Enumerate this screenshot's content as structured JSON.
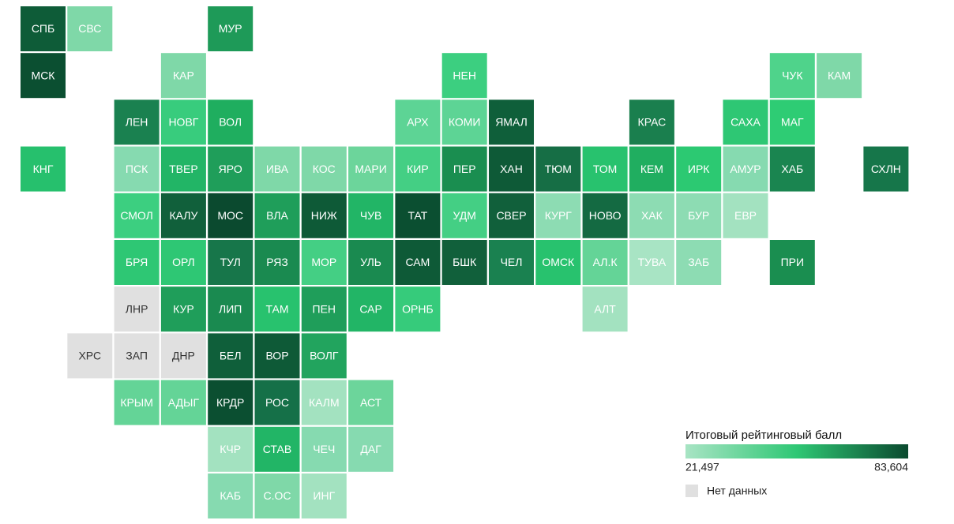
{
  "grid": [
    [
      {
        "label": "СПБ",
        "color": "#0e5c38"
      },
      {
        "label": "СВС",
        "color": "#7fd8a8"
      },
      null,
      null,
      {
        "label": "МУР",
        "color": "#1e9a58"
      }
    ],
    [
      {
        "label": "МСК",
        "color": "#0b4f31"
      },
      null,
      null,
      {
        "label": "КАР",
        "color": "#7fd8a8"
      },
      null,
      null,
      null,
      null,
      null,
      {
        "label": "НЕН",
        "color": "#3ccf80"
      },
      null,
      null,
      null,
      null,
      null,
      null,
      {
        "label": "ЧУК",
        "color": "#4fd38b"
      },
      {
        "label": "КАМ",
        "color": "#7fd8a8"
      }
    ],
    [
      null,
      null,
      {
        "label": "ЛЕН",
        "color": "#1a8150"
      },
      {
        "label": "НОВГ",
        "color": "#38cc7d"
      },
      {
        "label": "ВОЛ",
        "color": "#1fae5f"
      },
      null,
      null,
      null,
      {
        "label": "АРХ",
        "color": "#5dd495"
      },
      {
        "label": "КОМИ",
        "color": "#5dd495"
      },
      {
        "label": "ЯМАЛ",
        "color": "#0f5f3a"
      },
      null,
      null,
      {
        "label": "КРАС",
        "color": "#1a7f4e"
      },
      null,
      {
        "label": "САХА",
        "color": "#2ec774"
      },
      {
        "label": "МАГ",
        "color": "#2ecc74"
      }
    ],
    [
      {
        "label": "КНГ",
        "color": "#26c06d"
      },
      null,
      {
        "label": "ПСК",
        "color": "#86dab0"
      },
      {
        "label": "ТВЕР",
        "color": "#22b566"
      },
      {
        "label": "ЯРО",
        "color": "#1f9e5a"
      },
      {
        "label": "ИВА",
        "color": "#7fd8a8"
      },
      {
        "label": "КОС",
        "color": "#7fd8a8"
      },
      {
        "label": "МАРИ",
        "color": "#6cd59b"
      },
      {
        "label": "КИР",
        "color": "#44cf84"
      },
      {
        "label": "ПЕР",
        "color": "#1a8e50"
      },
      {
        "label": "ХАН",
        "color": "#0e5a37"
      },
      {
        "label": "ТЮМ",
        "color": "#166e45"
      },
      {
        "label": "ТОМ",
        "color": "#28c26e"
      },
      {
        "label": "КЕМ",
        "color": "#20ae60"
      },
      {
        "label": "ИРК",
        "color": "#2cc972"
      },
      {
        "label": "АМУР",
        "color": "#86dab0"
      },
      {
        "label": "ХАБ",
        "color": "#1a8550"
      },
      null,
      {
        "label": "СХЛН",
        "color": "#16764a"
      }
    ],
    [
      null,
      null,
      {
        "label": "СМОЛ",
        "color": "#3ccf80"
      },
      {
        "label": "КАЛУ",
        "color": "#11603b"
      },
      {
        "label": "МОС",
        "color": "#0b4a2f"
      },
      {
        "label": "ВЛА",
        "color": "#1f9e5a"
      },
      {
        "label": "НИЖ",
        "color": "#0e5a37"
      },
      {
        "label": "ЧУВ",
        "color": "#22b566"
      },
      {
        "label": "ТАТ",
        "color": "#0b4f31"
      },
      {
        "label": "УДМ",
        "color": "#44cf84"
      },
      {
        "label": "СВЕР",
        "color": "#11603b"
      },
      {
        "label": "КУРГ",
        "color": "#8ddcb3"
      },
      {
        "label": "НОВО",
        "color": "#146a42"
      },
      {
        "label": "ХАК",
        "color": "#8ddcb3"
      },
      {
        "label": "БУР",
        "color": "#8ddcb3"
      },
      {
        "label": "ЕВР",
        "color": "#a3e2c0"
      }
    ],
    [
      null,
      null,
      {
        "label": "БРЯ",
        "color": "#2ec774"
      },
      {
        "label": "ОРЛ",
        "color": "#2ec774"
      },
      {
        "label": "ТУЛ",
        "color": "#17764a"
      },
      {
        "label": "РЯЗ",
        "color": "#1a8a50"
      },
      {
        "label": "МОР",
        "color": "#44cf84"
      },
      {
        "label": "УЛЬ",
        "color": "#1a8a50"
      },
      {
        "label": "САМ",
        "color": "#0e5a37"
      },
      {
        "label": "БШК",
        "color": "#11603b"
      },
      {
        "label": "ЧЕЛ",
        "color": "#1a8150"
      },
      {
        "label": "ОМСК",
        "color": "#28c26e"
      },
      {
        "label": "АЛ.К",
        "color": "#64d497"
      },
      {
        "label": "ТУВА",
        "color": "#a8e4c4"
      },
      {
        "label": "ЗАБ",
        "color": "#8ddcb3"
      },
      null,
      {
        "label": "ПРИ",
        "color": "#1a8e50"
      }
    ],
    [
      null,
      null,
      {
        "label": "ЛНР",
        "color": "#e0e0e0"
      },
      {
        "label": "КУР",
        "color": "#1f9e5a"
      },
      {
        "label": "ЛИП",
        "color": "#1a8a50"
      },
      {
        "label": "ТАМ",
        "color": "#28c26e"
      },
      {
        "label": "ПЕН",
        "color": "#1f9e5a"
      },
      {
        "label": "САР",
        "color": "#22b566"
      },
      {
        "label": "ОРНБ",
        "color": "#36cb7b"
      },
      null,
      null,
      null,
      {
        "label": "АЛТ",
        "color": "#a3e2c0"
      }
    ],
    [
      null,
      {
        "label": "ХРС",
        "color": "#e0e0e0"
      },
      {
        "label": "ЗАП",
        "color": "#e0e0e0"
      },
      {
        "label": "ДНР",
        "color": "#e0e0e0"
      },
      {
        "label": "БЕЛ",
        "color": "#0f5f3a"
      },
      {
        "label": "ВОР",
        "color": "#0e5a37"
      },
      {
        "label": "ВОЛГ",
        "color": "#22a45e"
      }
    ],
    [
      null,
      null,
      {
        "label": "КРЫМ",
        "color": "#64d497"
      },
      {
        "label": "АДЫГ",
        "color": "#64d497"
      },
      {
        "label": "КРДР",
        "color": "#0b4f31"
      },
      {
        "label": "РОС",
        "color": "#157048"
      },
      {
        "label": "КАЛМ",
        "color": "#a3e2c0"
      },
      {
        "label": "АСТ",
        "color": "#6cd59b"
      }
    ],
    [
      null,
      null,
      null,
      null,
      {
        "label": "КЧР",
        "color": "#a3e2c0"
      },
      {
        "label": "СТАВ",
        "color": "#22b566"
      },
      {
        "label": "ЧЕЧ",
        "color": "#86dab0"
      },
      {
        "label": "ДАГ",
        "color": "#86dab0"
      }
    ],
    [
      null,
      null,
      null,
      null,
      {
        "label": "КАБ",
        "color": "#86dab0"
      },
      {
        "label": "С.ОС",
        "color": "#7fd8a8"
      },
      {
        "label": "ИНГ",
        "color": "#a3e2c0"
      }
    ]
  ],
  "legend": {
    "title": "Итоговый рейтинговый балл",
    "min_label": "21,497",
    "max_label": "83,604",
    "colors": [
      "#a8e4c4",
      "#2ec774",
      "#0b4a2f"
    ],
    "no_data_label": "Нет данных",
    "no_data_color": "#e0e0e0"
  }
}
